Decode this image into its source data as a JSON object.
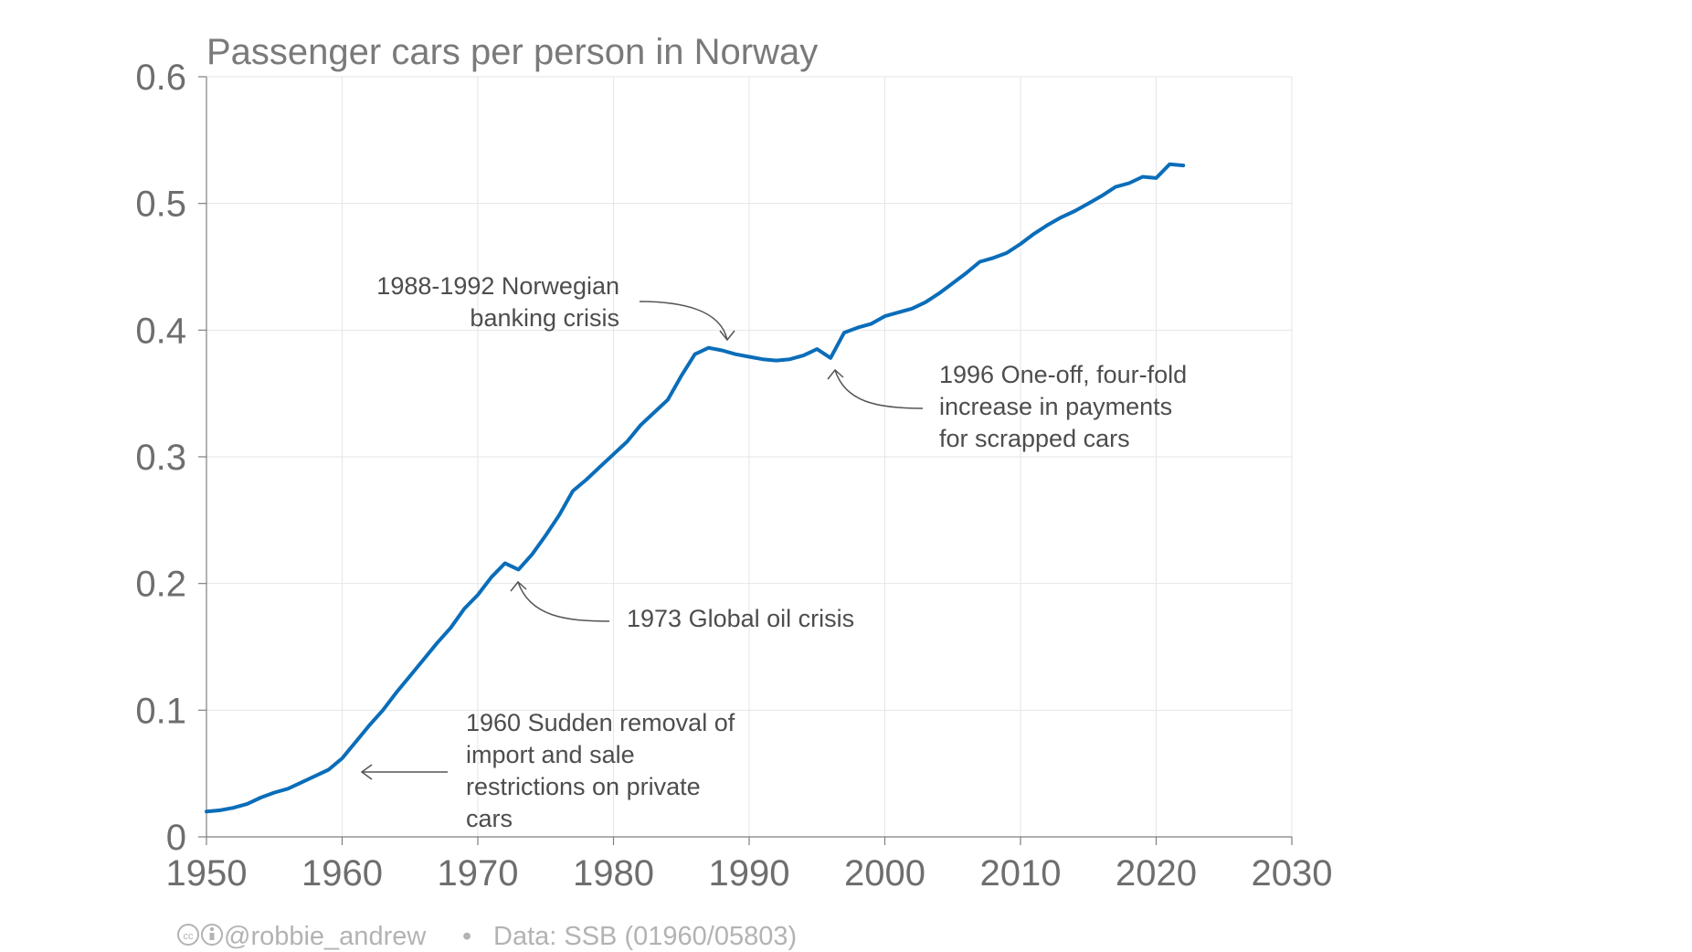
{
  "chart_data": {
    "type": "line",
    "title": "Passenger cars per person in Norway",
    "xlabel": "",
    "ylabel": "",
    "xlim": [
      1950,
      2030
    ],
    "ylim": [
      0,
      0.6
    ],
    "x_ticks": [
      1950,
      1960,
      1970,
      1980,
      1990,
      2000,
      2010,
      2020,
      2030
    ],
    "y_ticks": [
      0,
      0.1,
      0.2,
      0.3,
      0.4,
      0.5,
      0.6
    ],
    "y_tick_labels": [
      "0",
      "0.1",
      "0.2",
      "0.3",
      "0.4",
      "0.5",
      "0.6"
    ],
    "grid": true,
    "series": [
      {
        "color": "#0a6db9",
        "x": [
          1950,
          1951,
          1952,
          1953,
          1954,
          1955,
          1956,
          1957,
          1958,
          1959,
          1960,
          1961,
          1962,
          1963,
          1964,
          1965,
          1966,
          1967,
          1968,
          1969,
          1970,
          1971,
          1972,
          1973,
          1974,
          1975,
          1976,
          1977,
          1978,
          1979,
          1980,
          1981,
          1982,
          1983,
          1984,
          1985,
          1986,
          1987,
          1988,
          1989,
          1990,
          1991,
          1992,
          1993,
          1994,
          1995,
          1996,
          1997,
          1998,
          1999,
          2000,
          2001,
          2002,
          2003,
          2004,
          2005,
          2006,
          2007,
          2008,
          2009,
          2010,
          2011,
          2012,
          2013,
          2014,
          2015,
          2016,
          2017,
          2018,
          2019,
          2020,
          2021,
          2022
        ],
        "y": [
          0.02,
          0.021,
          0.023,
          0.026,
          0.031,
          0.035,
          0.038,
          0.043,
          0.048,
          0.053,
          0.062,
          0.075,
          0.088,
          0.1,
          0.114,
          0.127,
          0.14,
          0.153,
          0.165,
          0.18,
          0.191,
          0.205,
          0.216,
          0.211,
          0.223,
          0.238,
          0.254,
          0.273,
          0.282,
          0.292,
          0.302,
          0.312,
          0.325,
          0.335,
          0.345,
          0.364,
          0.381,
          0.386,
          0.384,
          0.381,
          0.379,
          0.377,
          0.376,
          0.377,
          0.38,
          0.385,
          0.378,
          0.398,
          0.402,
          0.405,
          0.411,
          0.414,
          0.417,
          0.422,
          0.429,
          0.437,
          0.445,
          0.454,
          0.457,
          0.461,
          0.468,
          0.476,
          0.483,
          0.489,
          0.494,
          0.5,
          0.506,
          0.513,
          0.516,
          0.521,
          0.52,
          0.531,
          0.53
        ]
      }
    ],
    "annotations": [
      {
        "lines": [
          "1988-1992 Norwegian",
          "banking crisis"
        ],
        "x": 1988,
        "y": 0.386,
        "align": "end"
      },
      {
        "lines": [
          "1996 One-off, four-fold",
          "increase in payments",
          "for scrapped cars"
        ],
        "x": 1996,
        "y": 0.378,
        "align": "start"
      },
      {
        "lines": [
          "1973 Global oil crisis"
        ],
        "x": 1973,
        "y": 0.211,
        "align": "start"
      },
      {
        "lines": [
          "1960 Sudden removal of",
          "import and sale",
          "restrictions on private",
          "cars"
        ],
        "x": 1961,
        "y": 0.055,
        "align": "start"
      }
    ]
  },
  "footer": {
    "icons": [
      "cc-icon",
      "by-icon"
    ],
    "author": "@robbie_andrew",
    "separator": "•",
    "source": "Data: SSB (01960/05803)"
  }
}
